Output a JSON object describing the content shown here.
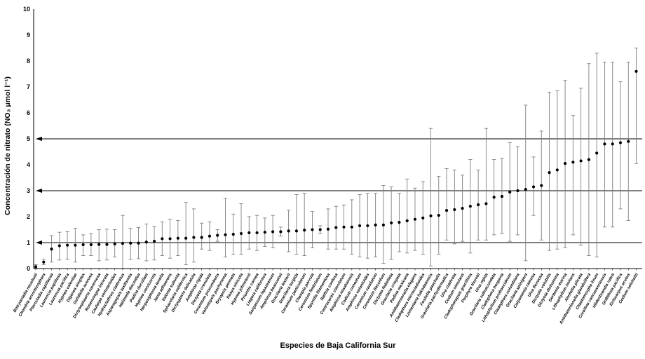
{
  "page": {
    "background": "#ffffff"
  },
  "chart_data": {
    "type": "scatter",
    "title": "",
    "xlabel": "Especies de Baja California Sur",
    "ylabel": "Concentración de nitrato (NO₃ μmol l⁻¹)",
    "ylim": [
      0,
      10
    ],
    "yticks": [
      0,
      1,
      2,
      3,
      4,
      5,
      6,
      7,
      8,
      9,
      10
    ],
    "reference_arrow_lines_y": [
      1,
      3,
      5
    ],
    "grid": false,
    "legend_position": "none",
    "marker": "filled-circle",
    "error_bars": true,
    "series": [
      {
        "name": "nitrate-mean-with-error-bars",
        "species": [
          "Botryocladia neushulii",
          "Chondria acrorhizophora",
          "Pterocladia capillacea",
          "Laurencia papillosa",
          "Laurencia pacifica",
          "Hypnea valentiae",
          "Digenea simplex",
          "Gelidiella acerosa",
          "Dictyosphaeria cavernosa",
          "Rosenvingea intricata",
          "Caulerpa sertularioides",
          "Hydroclathrus clathratus",
          "Asparagopsis taxiformis",
          "Halimeda discoidea",
          "Padina durvillaei",
          "Hypnea cervicornis",
          "Herposiphonia tenella",
          "Jania adhaerens",
          "Valonia subusta",
          "Sphacelaria californica",
          "Dictyopteris delicatula",
          "Amphiroa rigida",
          "Dictyota crenulata",
          "Ceramium procumbens",
          "Valoniopsis pachynema",
          "Bryopsis pennata",
          "Dasya sinicola",
          "Hypnea johnstonii",
          "Prionitis cornea",
          "Liagora californica",
          "Sargassum lapazeanum",
          "Amphiroa beauvoisii",
          "Gracilaria textorii",
          "Gracilaria turgida",
          "Ceramium paniculatum",
          "Champia parvula",
          "Ceramium fimbriatum",
          "Spyridia filamentosa",
          "Ralfsia confusa",
          "Centroceras clavulatum",
          "Amphiroa misakiensis",
          "Codium cuneatum",
          "Amphiroa valonioides",
          "Ceramium caudatum",
          "Ceramium flaccidum",
          "Dictyota flabellata",
          "Gracilaria crispata",
          "Padina mexicana",
          "Antithamnionella elegans",
          "Cladophora microcladioides",
          "Lomentaria hakodatensis",
          "Fosliella paschalis",
          "Gracilaria pachydermatica",
          "Ulva clathrata",
          "Codium simulans",
          "Cladophoropsis gracillima",
          "Porphyra thuretii",
          "Ulva rigida",
          "Gracilaria subsecundata",
          "Cladophora hesperia",
          "Lithophyllum proboscideum",
          "Cladophora columbiana",
          "Gracilaria spinigera",
          "Colpomenia ramosa",
          "Ulva flexuosa",
          "Dictyota volubilis",
          "Dictyota dichotoma",
          "Derbesia marina",
          "Lithophyllum imitans",
          "Ahnfeltia plicata",
          "Antithamnionella glandulifera",
          "Chaetomorpha linum",
          "Corallina vancouveriensis",
          "Hildenbrandia rubra",
          "Griffithsia pacifica",
          "Ectocarpus acutus",
          "Codium setchellii"
        ],
        "mean": [
          0.07,
          0.25,
          0.75,
          0.88,
          0.9,
          0.9,
          0.92,
          0.92,
          0.93,
          0.93,
          0.95,
          0.97,
          0.98,
          0.98,
          1.02,
          1.05,
          1.15,
          1.15,
          1.17,
          1.17,
          1.2,
          1.2,
          1.25,
          1.28,
          1.3,
          1.32,
          1.35,
          1.38,
          1.38,
          1.4,
          1.42,
          1.42,
          1.45,
          1.45,
          1.48,
          1.5,
          1.5,
          1.52,
          1.58,
          1.6,
          1.6,
          1.65,
          1.65,
          1.68,
          1.68,
          1.76,
          1.78,
          1.84,
          1.9,
          1.95,
          2.03,
          2.05,
          2.24,
          2.27,
          2.32,
          2.4,
          2.46,
          2.5,
          2.75,
          2.78,
          2.95,
          3.0,
          3.05,
          3.15,
          3.2,
          3.7,
          3.8,
          4.05,
          4.1,
          4.15,
          4.2,
          4.45,
          4.8,
          4.8,
          4.85,
          4.9,
          7.6
        ],
        "err_low": [
          0.02,
          0.15,
          0.25,
          0.33,
          0.35,
          0.25,
          0.5,
          0.5,
          0.3,
          0.33,
          0.45,
          0.0,
          0.35,
          0.38,
          0.3,
          0.33,
          0.5,
          0.4,
          0.5,
          0.15,
          0.25,
          0.75,
          0.7,
          1.05,
          0.45,
          0.55,
          0.55,
          0.75,
          0.7,
          0.85,
          0.8,
          1.25,
          0.65,
          0.55,
          0.5,
          0.8,
          1.35,
          0.75,
          0.75,
          0.75,
          0.55,
          0.45,
          0.4,
          0.45,
          0.2,
          0.35,
          0.65,
          0.6,
          0.7,
          0.55,
          0.1,
          0.55,
          1.1,
          0.95,
          1.05,
          0.6,
          1.1,
          1.1,
          1.3,
          1.35,
          1.05,
          1.3,
          0.3,
          2.05,
          1.1,
          0.7,
          0.75,
          0.8,
          1.3,
          0.9,
          0.5,
          0.45,
          1.6,
          1.6,
          2.3,
          1.85,
          4.05
        ],
        "err_high": [
          0.15,
          0.35,
          1.27,
          1.4,
          1.42,
          1.55,
          1.3,
          1.35,
          1.5,
          1.52,
          1.5,
          2.05,
          1.55,
          1.58,
          1.72,
          1.62,
          1.8,
          1.9,
          1.85,
          2.55,
          2.3,
          1.75,
          1.8,
          1.5,
          2.7,
          2.1,
          2.5,
          2.0,
          2.05,
          1.95,
          2.05,
          1.6,
          2.25,
          2.85,
          2.9,
          2.2,
          1.65,
          2.3,
          2.4,
          2.45,
          2.65,
          2.85,
          2.9,
          2.9,
          3.2,
          3.15,
          2.9,
          3.45,
          3.1,
          3.35,
          5.4,
          3.55,
          3.85,
          3.8,
          3.6,
          4.2,
          3.8,
          5.4,
          4.2,
          4.25,
          4.85,
          4.7,
          6.3,
          4.3,
          5.3,
          6.8,
          6.85,
          7.25,
          5.9,
          6.95,
          7.9,
          8.3,
          7.95,
          7.95,
          7.2,
          7.95,
          8.5
        ]
      }
    ]
  },
  "colors": {
    "point": "#000000",
    "error_bar": "#7f7f7f",
    "axis": "#000000",
    "reference_line": "#000000",
    "text": "#000000"
  }
}
